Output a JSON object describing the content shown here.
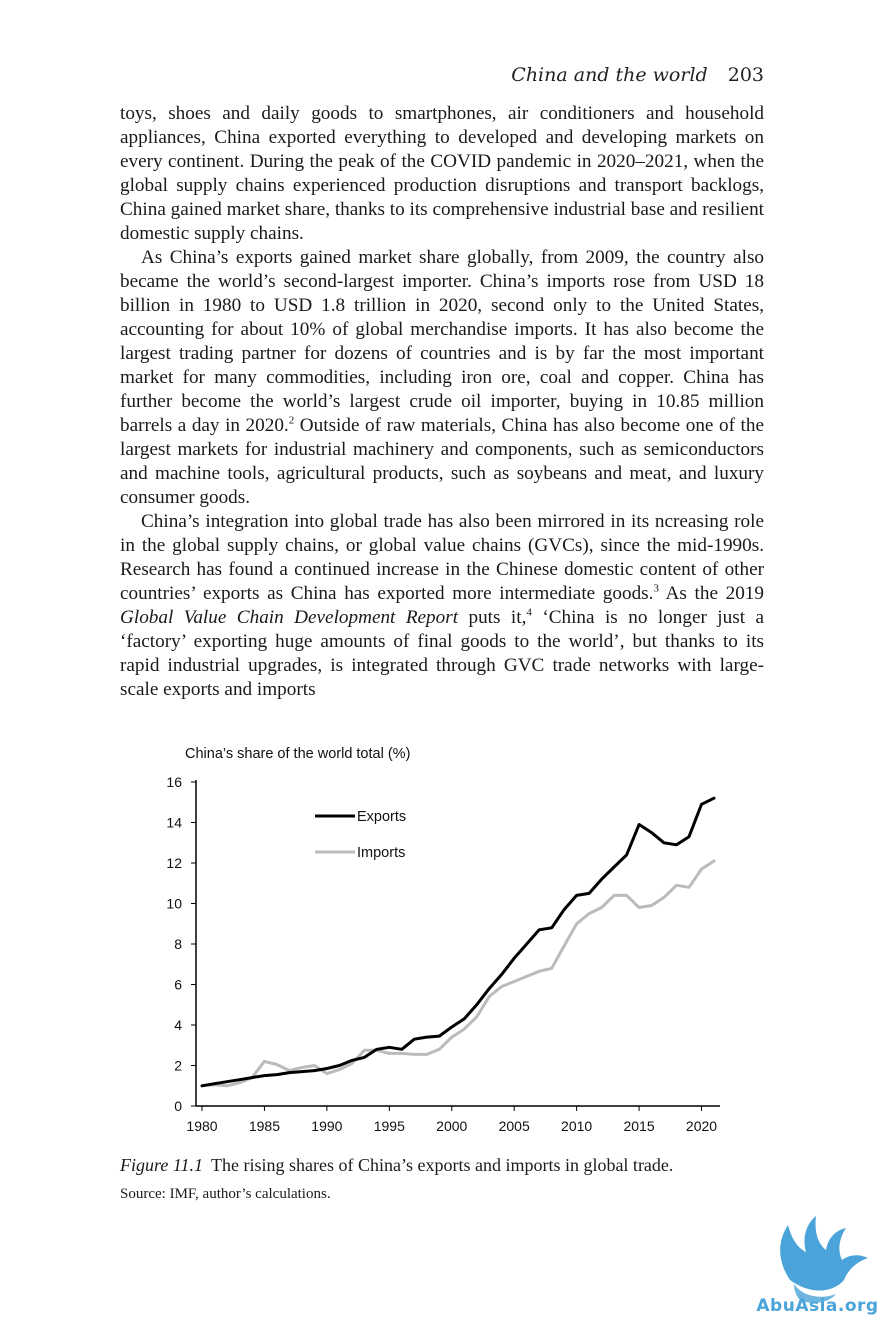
{
  "running_head": {
    "title": "China and the world",
    "page_number": "203"
  },
  "paragraphs": [
    {
      "text": "toys, shoes and daily goods to smartphones, air conditioners and household appliances, China exported everything to developed and developing markets on every continent. During the peak of the COVID pandemic in 2020–2021, when the global supply chains experienced production disruptions and transport backlogs, China gained market share, thanks to its comprehensive industrial base and resilient domestic supply chains."
    },
    {
      "text_a": "As China’s exports gained market share globally, from 2009, the country also became the world’s second-largest importer. China’s imports rose from USD 18 billion in 1980 to USD 1.8 trillion in 2020, second only to the United States, accounting for about 10% of global merchandise imports. It has also become the largest trading partner for dozens of countries and is by far the most important market for many commodities, including iron ore, coal and copper. China has further become the world’s largest crude oil importer, buying in 10.85 million barrels a day in 2020.",
      "note": "2",
      "text_b": " Outside of raw materials, China has also become one of the largest markets for industrial machinery and components, such as semiconductors and machine tools, agricultural products, such as soybeans and meat, and luxury consumer goods."
    },
    {
      "text_a": "China’s integration into global trade has also been mirrored in its ncreasing role in the global supply chains, or global value chains (GVCs), since the mid-1990s. Research has found a continued increase in the Chinese domestic content of other countries’ exports as China has exported more intermediate goods.",
      "note_1": "3",
      "text_b": " As the 2019 ",
      "italic": "Global Value Chain Development Report",
      "text_c": " puts it,",
      "note_2": "4",
      "text_d": " ‘China is no longer just a ‘factory’ exporting huge amounts of final goods to the world’, but thanks to its rapid industrial upgrades, is integrated through GVC trade networks with large-scale exports and imports"
    }
  ],
  "figure": {
    "label": "Figure 11.1",
    "caption": "The rising shares of China’s exports and imports in global trade.",
    "source": "Source: IMF, author’s calculations."
  },
  "chart_data": {
    "type": "line",
    "title": "China’s share of the world total (%)",
    "xlabel": "",
    "ylabel": "China’s share of the world total (%)",
    "xlim": [
      1980,
      2021
    ],
    "ylim": [
      0,
      16
    ],
    "x_ticks": [
      1980,
      1985,
      1990,
      1995,
      2000,
      2005,
      2010,
      2015,
      2020
    ],
    "y_ticks": [
      0,
      2,
      4,
      6,
      8,
      10,
      12,
      14,
      16
    ],
    "legend_position": "top-left",
    "grid": false,
    "x": [
      1980,
      1981,
      1982,
      1983,
      1984,
      1985,
      1986,
      1987,
      1988,
      1989,
      1990,
      1991,
      1992,
      1993,
      1994,
      1995,
      1996,
      1997,
      1998,
      1999,
      2000,
      2001,
      2002,
      2003,
      2004,
      2005,
      2006,
      2007,
      2008,
      2009,
      2010,
      2011,
      2012,
      2013,
      2014,
      2015,
      2016,
      2017,
      2018,
      2019,
      2020,
      2021
    ],
    "series": [
      {
        "name": "Exports",
        "color": "#000000",
        "values": [
          1.0,
          1.1,
          1.2,
          1.3,
          1.4,
          1.5,
          1.55,
          1.65,
          1.7,
          1.75,
          1.85,
          2.0,
          2.25,
          2.4,
          2.8,
          2.9,
          2.8,
          3.3,
          3.4,
          3.45,
          3.9,
          4.3,
          5.0,
          5.8,
          6.5,
          7.3,
          8.0,
          8.7,
          8.8,
          9.7,
          10.4,
          10.5,
          11.2,
          11.8,
          12.4,
          13.9,
          13.5,
          13.0,
          12.9,
          13.3,
          14.9,
          15.2
        ]
      },
      {
        "name": "Imports",
        "color": "#bbbbbb",
        "values": [
          1.0,
          1.05,
          1.0,
          1.15,
          1.4,
          2.2,
          2.05,
          1.75,
          1.9,
          2.0,
          1.6,
          1.8,
          2.1,
          2.75,
          2.75,
          2.6,
          2.6,
          2.55,
          2.55,
          2.8,
          3.4,
          3.8,
          4.4,
          5.4,
          5.9,
          6.15,
          6.4,
          6.65,
          6.8,
          7.9,
          9.0,
          9.5,
          9.8,
          10.4,
          10.4,
          9.8,
          9.9,
          10.3,
          10.9,
          10.8,
          11.7,
          12.1
        ]
      }
    ]
  },
  "watermark": {
    "text": "AbuAsia.org",
    "color": "#4aa3d9"
  }
}
